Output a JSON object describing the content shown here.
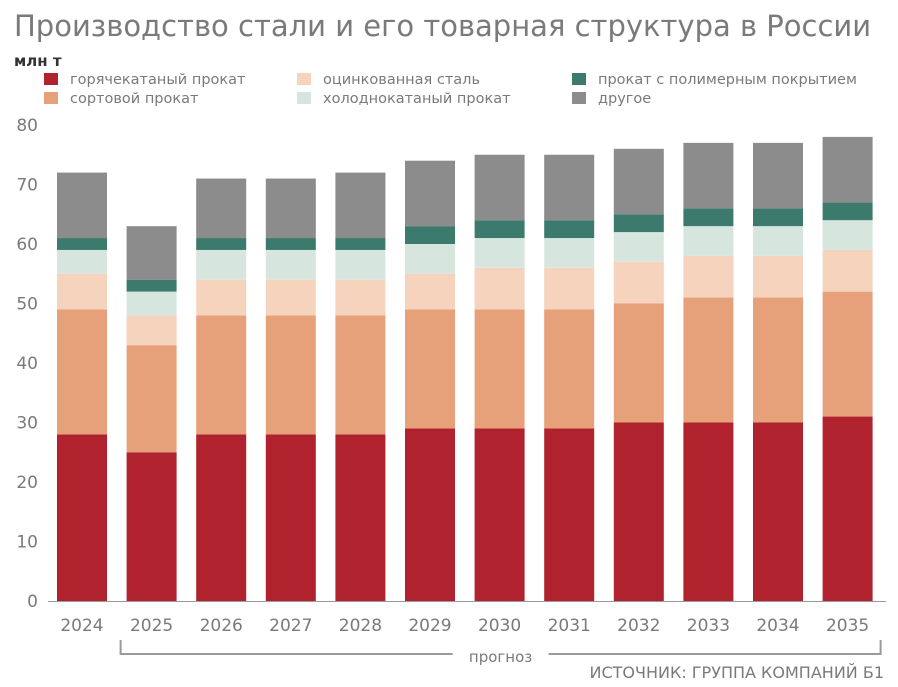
{
  "title": "Производство стали и его товарная структура в России",
  "unit_label": "млн т",
  "source": "ИСТОЧНИК: ГРУППА КОМПАНИЙ Б1",
  "forecast_label": "прогноз",
  "chart_data": {
    "type": "bar",
    "stacked": true,
    "title": "Производство стали и его товарная структура в России",
    "ylabel": "млн т",
    "xlabel": "",
    "ylim": [
      0,
      80
    ],
    "yticks": [
      0,
      10,
      20,
      30,
      40,
      50,
      60,
      70,
      80
    ],
    "grid": false,
    "legend_position": "top",
    "categories": [
      "2024",
      "2025",
      "2026",
      "2027",
      "2028",
      "2029",
      "2030",
      "2031",
      "2032",
      "2033",
      "2034",
      "2035"
    ],
    "series": [
      {
        "name": "горячекатаный прокат",
        "color": "#b0232e",
        "values": [
          28,
          25,
          28,
          28,
          28,
          29,
          29,
          29,
          30,
          30,
          30,
          31
        ]
      },
      {
        "name": "сортовой прокат",
        "color": "#e6a07a",
        "values": [
          21,
          18,
          20,
          20,
          20,
          20,
          20,
          20,
          20,
          21,
          21,
          21
        ]
      },
      {
        "name": "оцинкованная сталь",
        "color": "#f5d3bd",
        "values": [
          6,
          5,
          6,
          6,
          6,
          6,
          7,
          7,
          7,
          7,
          7,
          7
        ]
      },
      {
        "name": "холоднокатаный прокат",
        "color": "#d6e6df",
        "values": [
          4,
          4,
          5,
          5,
          5,
          5,
          5,
          5,
          5,
          5,
          5,
          5
        ]
      },
      {
        "name": "прокат с полимерным покрытием",
        "color": "#3d7a6e",
        "values": [
          2,
          2,
          2,
          2,
          2,
          3,
          3,
          3,
          3,
          3,
          3,
          3
        ]
      },
      {
        "name": "другое",
        "color": "#8c8c8c",
        "values": [
          11,
          9,
          10,
          10,
          11,
          11,
          11,
          11,
          11,
          11,
          11,
          11
        ]
      }
    ],
    "forecast_range": [
      "2025",
      "2035"
    ]
  }
}
